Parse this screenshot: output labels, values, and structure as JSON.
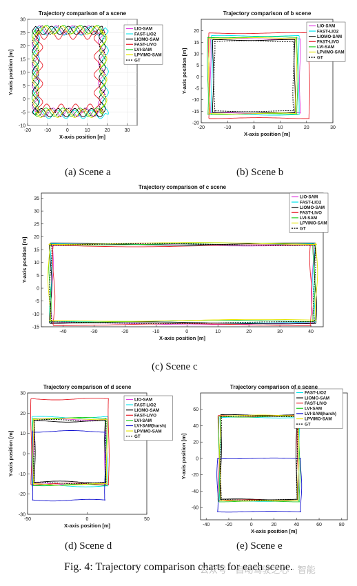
{
  "figure_caption": "Fig. 4: Trajectory comparison charts for each scene.",
  "watermark_text": "公众号 · 自动驾驶之心 · 智能",
  "chart_data": [
    {
      "id": "a",
      "type": "line",
      "subcaption": "(a) Scene a",
      "title": "Trajectory comparison of a scene",
      "xlabel": "X-axis position [m]",
      "ylabel": "Y-axis position [m]",
      "xlim": [
        -20,
        35
      ],
      "ylim": [
        -10,
        30
      ],
      "xticks": [
        -20,
        -10,
        0,
        10,
        20,
        30
      ],
      "yticks": [
        -10,
        -5,
        0,
        5,
        10,
        15,
        20,
        25,
        30
      ],
      "legend_position": "top-right",
      "grid": true,
      "shape": "wavy",
      "series": [
        {
          "name": "LIO-SAM",
          "color": "#e040e0",
          "dash": "",
          "rect": [
            -16,
            -5,
            17,
            26
          ]
        },
        {
          "name": "FAST-LIO2",
          "color": "#00e5ee",
          "dash": "",
          "rect": [
            -15.5,
            -5.8,
            19,
            25.6
          ]
        },
        {
          "name": "LIOMO-SAM",
          "color": "#000000",
          "dash": "",
          "rect": [
            -16,
            -5.2,
            17.5,
            25.8
          ]
        },
        {
          "name": "FAST-LIVO",
          "color": "#e8202a",
          "dash": "",
          "rect": [
            -14,
            -3.5,
            15,
            24
          ]
        },
        {
          "name": "LVI-SAM",
          "color": "#22cc22",
          "dash": "",
          "rect": [
            -16.2,
            -5,
            17.8,
            26.2
          ]
        },
        {
          "name": "LPVIMO-SAM",
          "color": "#e6e600",
          "dash": "",
          "rect": [
            -15.8,
            -5.4,
            18.2,
            25.9
          ]
        },
        {
          "name": "GT",
          "color": "#000000",
          "dash": "2,1.5",
          "rect": [
            -16,
            -5.1,
            17.6,
            25.9
          ]
        }
      ]
    },
    {
      "id": "b",
      "type": "line",
      "subcaption": "(b) Scene b",
      "title": "Trajectory comparison of b scene",
      "xlabel": "X-axis position [m]",
      "ylabel": "Y-axis position [m]",
      "xlim": [
        -20,
        30
      ],
      "ylim": [
        -20,
        25
      ],
      "xticks": [
        -20,
        -10,
        0,
        10,
        20,
        30
      ],
      "yticks": [
        -20,
        -15,
        -10,
        -5,
        0,
        5,
        10,
        15,
        20
      ],
      "legend_position": "top-right",
      "grid": false,
      "shape": "rect",
      "series": [
        {
          "name": "LIO-SAM",
          "color": "#e040e0",
          "dash": "",
          "rect": [
            -16.5,
            -15.8,
            17.5,
            16.5
          ]
        },
        {
          "name": "FAST-LIO2",
          "color": "#00e5ee",
          "dash": "",
          "rect": [
            -16,
            -16.5,
            17,
            17.8
          ]
        },
        {
          "name": "LIOMO-SAM",
          "color": "#000000",
          "dash": "",
          "rect": [
            -15.5,
            -15.5,
            15.5,
            16
          ]
        },
        {
          "name": "FAST-LIVO",
          "color": "#e8202a",
          "dash": "",
          "rect": [
            -17,
            -18,
            21,
            19
          ]
        },
        {
          "name": "LVI-SAM",
          "color": "#22cc22",
          "dash": "",
          "rect": [
            -17.5,
            -16.2,
            16.5,
            17.2
          ]
        },
        {
          "name": "LPVIMO-SAM",
          "color": "#e6e600",
          "dash": "",
          "rect": [
            -17,
            -16,
            16,
            16.8
          ]
        },
        {
          "name": "GT",
          "color": "#000000",
          "dash": "2,1.5",
          "rect": [
            -15,
            -15,
            15,
            15.5
          ]
        }
      ]
    },
    {
      "id": "c",
      "type": "line",
      "subcaption": "(c) Scene c",
      "title": "Trajectory comparison of c scene",
      "xlabel": "X-axis position [m]",
      "ylabel": "Y-axis position [m]",
      "xlim": [
        -47,
        44
      ],
      "ylim": [
        -15,
        37
      ],
      "xticks": [
        -40,
        -30,
        -20,
        -10,
        0,
        10,
        20,
        30,
        40
      ],
      "yticks": [
        -15,
        -10,
        -5,
        0,
        5,
        10,
        15,
        20,
        25,
        30,
        35
      ],
      "legend_position": "top-right",
      "grid": false,
      "shape": "rect",
      "series": [
        {
          "name": "LIO-SAM",
          "color": "#e040e0",
          "dash": "",
          "rect": [
            -43.5,
            -13.8,
            40.5,
            16.8
          ]
        },
        {
          "name": "FAST-LIO2",
          "color": "#00e5ee",
          "dash": "",
          "rect": [
            -44,
            -13.2,
            41,
            17
          ]
        },
        {
          "name": "LIOMO-SAM",
          "color": "#000000",
          "dash": "",
          "rect": [
            -44,
            -13.5,
            41.5,
            17.2
          ]
        },
        {
          "name": "FAST-LIVO",
          "color": "#e8202a",
          "dash": "",
          "rect": [
            -43,
            -14.2,
            40,
            16.5
          ]
        },
        {
          "name": "LVI-SAM",
          "color": "#22cc22",
          "dash": "",
          "rect": [
            -44.2,
            -12.8,
            41,
            17.2
          ]
        },
        {
          "name": "LPVIMO-SAM",
          "color": "#e6e600",
          "dash": "",
          "rect": [
            -44.5,
            -12.5,
            41.8,
            17.4
          ]
        },
        {
          "name": "GT",
          "color": "#000000",
          "dash": "2,1.5",
          "rect": [
            -44,
            -13.4,
            41.2,
            17
          ]
        }
      ]
    },
    {
      "id": "d",
      "type": "line",
      "subcaption": "(d) Scene d",
      "title": "Trajectory comparison of d scene",
      "xlabel": "X-axis position [m]",
      "ylabel": "Y-axis position [m]",
      "xlim": [
        -50,
        50
      ],
      "ylim": [
        -30,
        30
      ],
      "xticks": [
        -50,
        0,
        50
      ],
      "yticks": [
        -30,
        -20,
        -10,
        0,
        10,
        20,
        30
      ],
      "legend_position": "top-right",
      "grid": false,
      "shape": "rect",
      "series": [
        {
          "name": "LIO-SAM",
          "color": "#e040e0",
          "dash": "",
          "rect": [
            -45,
            -15,
            15,
            17
          ]
        },
        {
          "name": "FAST-LIO2",
          "color": "#00e5ee",
          "dash": "",
          "rect": [
            -46,
            -16,
            17,
            18
          ]
        },
        {
          "name": "LIOMO-SAM",
          "color": "#000000",
          "dash": "",
          "rect": [
            -44,
            -14,
            15,
            16
          ]
        },
        {
          "name": "FAST-LIVO",
          "color": "#e8202a",
          "dash": "",
          "rect": [
            -47,
            -15,
            18,
            27
          ]
        },
        {
          "name": "LVI-SAM",
          "color": "#22cc22",
          "dash": "",
          "rect": [
            -45.5,
            -15.5,
            16,
            17.5
          ]
        },
        {
          "name": "LVI-SAM(harsh)",
          "color": "#1010d0",
          "dash": "",
          "rect": [
            -46,
            -23,
            15,
            11
          ]
        },
        {
          "name": "LPVIMO-SAM",
          "color": "#e6e600",
          "dash": "",
          "rect": [
            -45.2,
            -15.2,
            16.5,
            17.2
          ]
        },
        {
          "name": "GT",
          "color": "#000000",
          "dash": "2,1.5",
          "rect": [
            -44.5,
            -14.5,
            15.5,
            16.5
          ]
        }
      ]
    },
    {
      "id": "e",
      "type": "line",
      "subcaption": "(e) Scene e",
      "title": "Trajectory comparison of e scene",
      "xlabel": "X-axis position [m]",
      "ylabel": "Y-axis position [m]",
      "xlim": [
        -45,
        85
      ],
      "ylim": [
        -75,
        80
      ],
      "xticks": [
        -40,
        -20,
        0,
        20,
        40,
        60,
        80
      ],
      "yticks": [
        -60,
        -40,
        -20,
        0,
        20,
        40,
        60
      ],
      "legend_position": "top-right",
      "grid": false,
      "shape": "rect",
      "series": [
        {
          "name": "FAST-LIO2",
          "color": "#00e5ee",
          "dash": "",
          "rect": [
            -28,
            -52,
            42,
            50
          ]
        },
        {
          "name": "LIOMO-SAM",
          "color": "#000000",
          "dash": "",
          "rect": [
            -27,
            -50,
            40,
            53
          ]
        },
        {
          "name": "FAST-LIVO",
          "color": "#e8202a",
          "dash": "",
          "rect": [
            -29,
            -51,
            41,
            52
          ]
        },
        {
          "name": "LVI-SAM",
          "color": "#22cc22",
          "dash": "",
          "rect": [
            -28.5,
            -52.5,
            42.5,
            51
          ]
        },
        {
          "name": "LVI-SAM(harsh)",
          "color": "#1010d0",
          "dash": "",
          "rect": [
            -30,
            -65,
            44,
            0
          ]
        },
        {
          "name": "LPVIMO-SAM",
          "color": "#e6e600",
          "dash": "",
          "rect": [
            -27.5,
            -51.5,
            41.5,
            52.5
          ]
        },
        {
          "name": "GT",
          "color": "#000000",
          "dash": "2,1.5",
          "rect": [
            -27,
            -50.5,
            40.5,
            51.5
          ]
        }
      ]
    }
  ]
}
